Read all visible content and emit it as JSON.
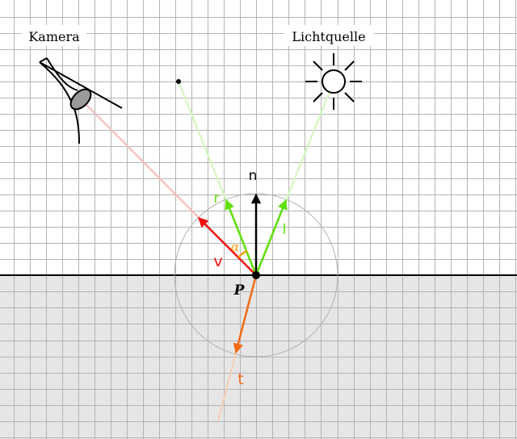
{
  "labels": {
    "camera": "Kamera",
    "light": "Lichtquelle",
    "point": "P",
    "normal": "n",
    "reflection": "r",
    "light_vector": "l",
    "view": "v",
    "transmission": "t",
    "angle": "α"
  },
  "colors": {
    "background": "#ffffff",
    "grid": "#b4b4b4",
    "surface_fill": "#e6e6e6",
    "surface_line": "#000000",
    "normal": "#000000",
    "reflection": "#5ee00a",
    "light_vector": "#5ee00a",
    "light_ray": "#d4f7bd",
    "view": "#ee1010",
    "view_ray": "#f7bcbc",
    "transmission": "#f26a14",
    "transmission_ray": "#f5cfb8",
    "angle_mark": "#f2a200",
    "circle": "#b0b0b0",
    "camera_lens": "#9a9a9a"
  },
  "icons": {
    "camera": "camera-eye-icon",
    "light": "sun-icon"
  }
}
